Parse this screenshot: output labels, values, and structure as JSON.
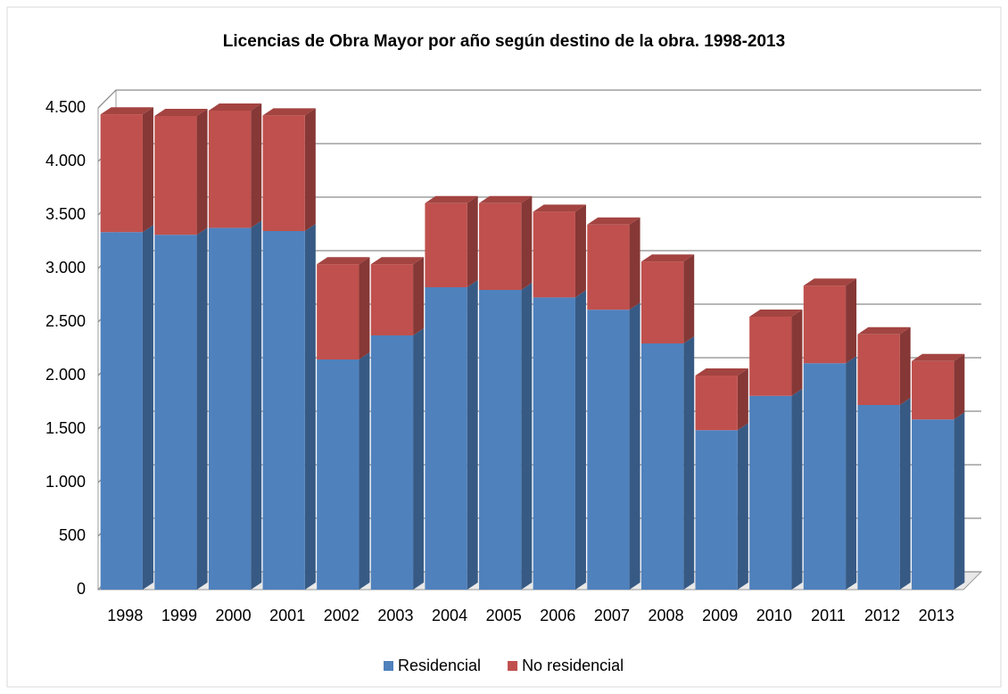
{
  "chart_data": {
    "type": "bar",
    "stacked": true,
    "three_d": true,
    "title": "Licencias  de Obra Mayor por año según destino de la obra. 1998-2013",
    "categories": [
      "1998",
      "1999",
      "2000",
      "2001",
      "2002",
      "2003",
      "2004",
      "2005",
      "2006",
      "2007",
      "2008",
      "2009",
      "2010",
      "2011",
      "2012",
      "2013"
    ],
    "series": [
      {
        "name": "Residencial",
        "color": "#4f81bd",
        "values": [
          3340,
          3315,
          3380,
          3350,
          2150,
          2375,
          2825,
          2800,
          2730,
          2615,
          2300,
          1490,
          1810,
          2115,
          1725,
          1590
        ]
      },
      {
        "name": "No residencial",
        "color": "#c0504d",
        "values": [
          1100,
          1110,
          1095,
          1080,
          890,
          665,
          785,
          810,
          800,
          795,
          765,
          510,
          740,
          725,
          660,
          545
        ]
      }
    ],
    "ylim": [
      0,
      4500
    ],
    "yticks": [
      0,
      500,
      {
        "value": 1000,
        "label": "1.000"
      },
      {
        "value": 1500,
        "label": "1.500"
      },
      {
        "value": 2000,
        "label": "2.000"
      },
      {
        "value": 2500,
        "label": "2.500"
      },
      {
        "value": 3000,
        "label": "3.000"
      },
      {
        "value": 3500,
        "label": "3.500"
      },
      {
        "value": 4000,
        "label": "4.000"
      },
      {
        "value": 4500,
        "label": "4.500"
      }
    ],
    "grid": true,
    "legend": "bottom"
  }
}
